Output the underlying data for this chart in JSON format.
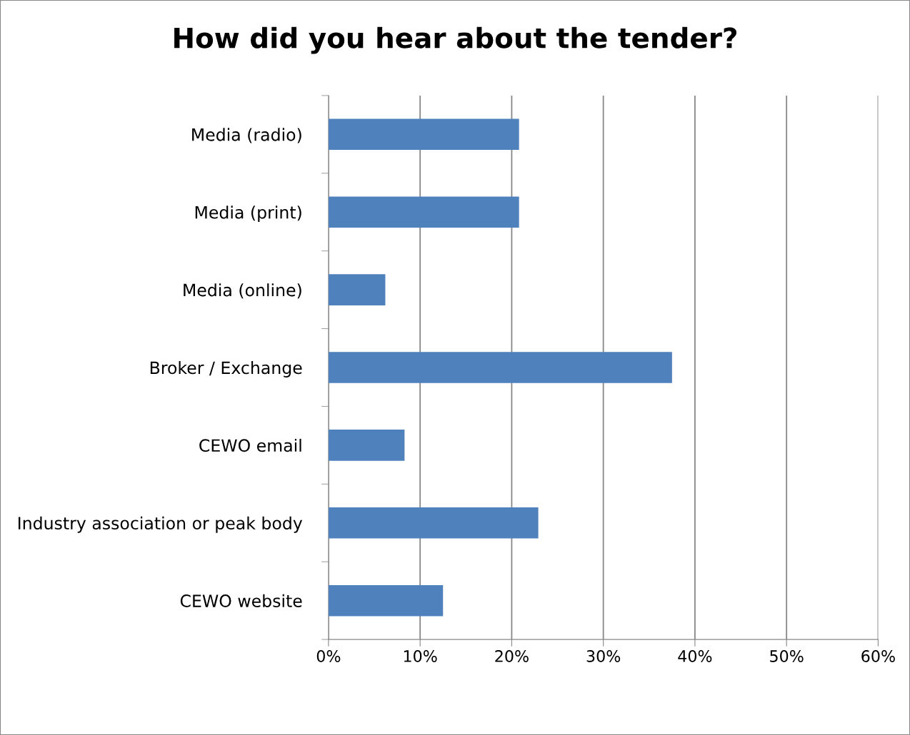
{
  "chart_data": {
    "type": "bar",
    "orientation": "horizontal",
    "title": "How did you hear about the tender?",
    "categories": [
      "Media (radio)",
      "Media (print)",
      "Media (online)",
      "Broker / Exchange",
      "CEWO email",
      "Industry association or peak body",
      "CEWO website"
    ],
    "values": [
      20.8,
      20.8,
      6.2,
      37.5,
      8.3,
      22.9,
      12.5
    ],
    "color": "#4f81bd",
    "xlim": [
      0,
      60
    ],
    "xticks": [
      {
        "value": 0,
        "label": "0%"
      },
      {
        "value": 10,
        "label": "10%"
      },
      {
        "value": 20,
        "label": "20%"
      },
      {
        "value": 30,
        "label": "30%"
      },
      {
        "value": 40,
        "label": "40%"
      },
      {
        "value": 50,
        "label": "50%"
      },
      {
        "value": 60,
        "label": "60%"
      }
    ],
    "grid": "x",
    "legend": false
  }
}
